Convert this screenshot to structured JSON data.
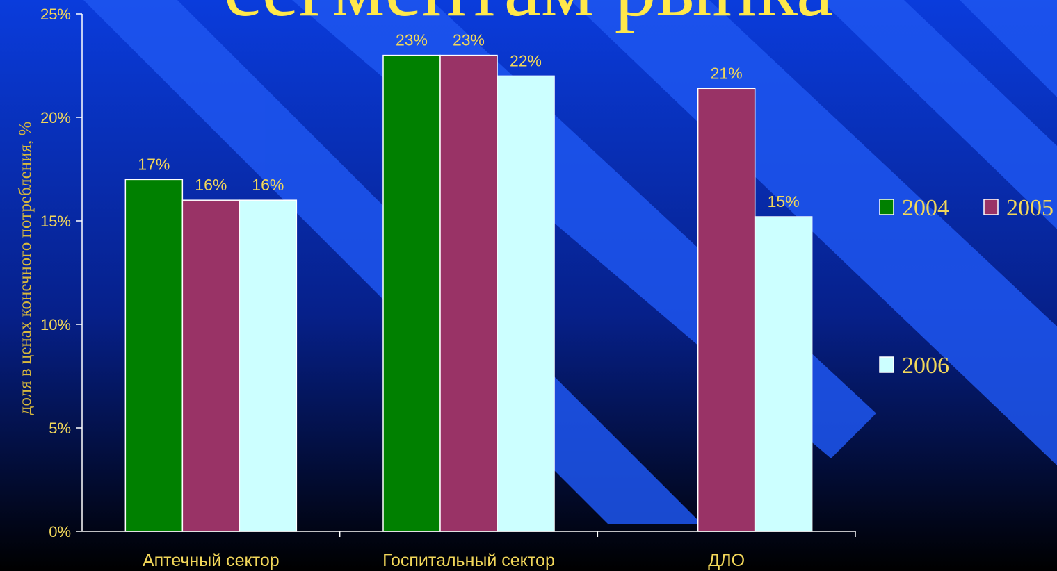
{
  "title_fragment": "сегментам рынка",
  "colors": {
    "background_top": "#0a3cdc",
    "background_bottom": "#000000",
    "stripe": "#1e56f0",
    "text": "#f2d75a",
    "series_2004": "#008000",
    "series_2005": "#993366",
    "series_2006": "#ccffff"
  },
  "chart_data": {
    "type": "bar",
    "categories": [
      "Аптечный сектор",
      "Госпитальный сектор",
      "ДЛО"
    ],
    "series": [
      {
        "name": "2004",
        "values": [
          17,
          23,
          null
        ],
        "labels": [
          "17%",
          "23%",
          ""
        ]
      },
      {
        "name": "2005",
        "values": [
          16,
          23,
          21.4
        ],
        "labels": [
          "16%",
          "23%",
          "21%"
        ]
      },
      {
        "name": "2006",
        "values": [
          16,
          22,
          15.2
        ],
        "labels": [
          "16%",
          "22%",
          "15%"
        ]
      }
    ],
    "ylabel": "доля в ценах конечного потребления, %",
    "yticks": [
      "0%",
      "5%",
      "10%",
      "15%",
      "20%",
      "25%"
    ],
    "ylim": [
      0,
      25
    ],
    "grid": false,
    "legend": "right"
  }
}
